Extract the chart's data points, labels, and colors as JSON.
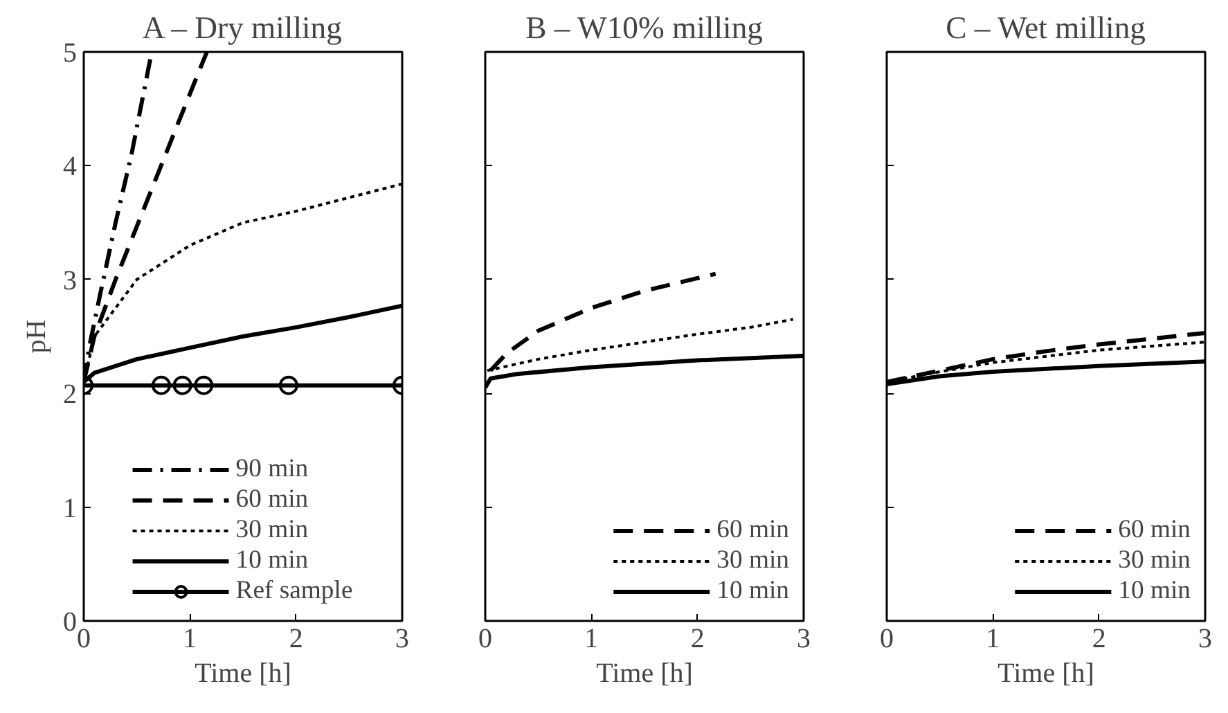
{
  "chart_data": [
    {
      "type": "line",
      "title": "A – Dry milling",
      "xlabel": "Time [h]",
      "ylabel": "pH",
      "xlim": [
        0,
        3
      ],
      "ylim": [
        0,
        5
      ],
      "xticks": [
        0,
        1,
        2,
        3
      ],
      "yticks": [
        0,
        1,
        2,
        3,
        4,
        5
      ],
      "legend": "bottom",
      "grid": false,
      "series": [
        {
          "name": "90 min",
          "color": "#000000",
          "line_style": "dashdot",
          "x": [
            0,
            0.05,
            0.15,
            0.3,
            0.45,
            0.64
          ],
          "values": [
            2.1,
            2.4,
            2.85,
            3.5,
            4.1,
            5.0
          ]
        },
        {
          "name": "60 min",
          "color": "#000000",
          "line_style": "dashed",
          "x": [
            0,
            0.1,
            0.3,
            0.6,
            0.9,
            1.16
          ],
          "values": [
            2.1,
            2.5,
            3.0,
            3.7,
            4.4,
            5.0
          ]
        },
        {
          "name": "30 min",
          "color": "#000000",
          "line_style": "dotted",
          "x": [
            0,
            0.1,
            0.5,
            1.0,
            1.5,
            2.0,
            2.5,
            3.0
          ],
          "values": [
            2.1,
            2.5,
            3.0,
            3.3,
            3.5,
            3.6,
            3.72,
            3.84
          ]
        },
        {
          "name": "10 min",
          "color": "#000000",
          "line_style": "solid",
          "x": [
            0,
            0.1,
            0.5,
            1.0,
            1.5,
            2.0,
            2.5,
            3.0
          ],
          "values": [
            2.1,
            2.18,
            2.3,
            2.4,
            2.5,
            2.58,
            2.67,
            2.77
          ]
        },
        {
          "name": "Ref sample",
          "color": "#000000",
          "line_style": "solid",
          "marker": "circle",
          "x": [
            0,
            0.73,
            0.93,
            1.13,
            1.93,
            3.0
          ],
          "values": [
            2.07,
            2.07,
            2.07,
            2.07,
            2.07,
            2.07
          ]
        }
      ]
    },
    {
      "type": "line",
      "title": "B – W10% milling",
      "xlabel": "Time [h]",
      "xlim": [
        0,
        3
      ],
      "ylim": [
        0,
        5
      ],
      "xticks": [
        0,
        1,
        2,
        3
      ],
      "yticks": [
        0,
        1,
        2,
        3,
        4,
        5
      ],
      "tick_labels": "x",
      "legend": "bottom right",
      "grid": false,
      "series": [
        {
          "name": "60 min",
          "color": "#000000",
          "line_style": "dashed",
          "x": [
            0.05,
            0.2,
            0.5,
            1.0,
            1.5,
            2.17
          ],
          "values": [
            2.2,
            2.35,
            2.55,
            2.75,
            2.9,
            3.05
          ]
        },
        {
          "name": "30 min",
          "color": "#000000",
          "line_style": "dotted",
          "x": [
            0.02,
            0.5,
            1.0,
            1.5,
            2.0,
            2.5,
            2.9
          ],
          "values": [
            2.2,
            2.3,
            2.38,
            2.45,
            2.52,
            2.58,
            2.65
          ]
        },
        {
          "name": "10 min",
          "color": "#000000",
          "line_style": "solid",
          "x": [
            0,
            0.05,
            0.3,
            1.0,
            2.0,
            3.0
          ],
          "values": [
            2.05,
            2.13,
            2.17,
            2.23,
            2.29,
            2.33
          ]
        }
      ]
    },
    {
      "type": "line",
      "title": "C – Wet milling",
      "xlabel": "Time [h]",
      "xlim": [
        0,
        3
      ],
      "ylim": [
        0,
        5
      ],
      "xticks": [
        0,
        1,
        2,
        3
      ],
      "yticks": [
        0,
        1,
        2,
        3,
        4,
        5
      ],
      "tick_labels": "x",
      "legend": "bottom right",
      "grid": false,
      "series": [
        {
          "name": "60 min",
          "color": "#000000",
          "line_style": "dashed",
          "x": [
            0,
            0.5,
            1.0,
            1.5,
            2.0,
            2.5,
            3.0
          ],
          "values": [
            2.1,
            2.2,
            2.3,
            2.37,
            2.43,
            2.48,
            2.53
          ]
        },
        {
          "name": "30 min",
          "color": "#000000",
          "line_style": "dotted",
          "x": [
            0,
            0.5,
            1.0,
            2.0,
            3.0
          ],
          "values": [
            2.1,
            2.19,
            2.27,
            2.38,
            2.45
          ]
        },
        {
          "name": "10 min",
          "color": "#000000",
          "line_style": "solid",
          "x": [
            0,
            0.5,
            1.0,
            2.0,
            3.0
          ],
          "values": [
            2.08,
            2.15,
            2.19,
            2.24,
            2.28
          ]
        }
      ]
    }
  ]
}
